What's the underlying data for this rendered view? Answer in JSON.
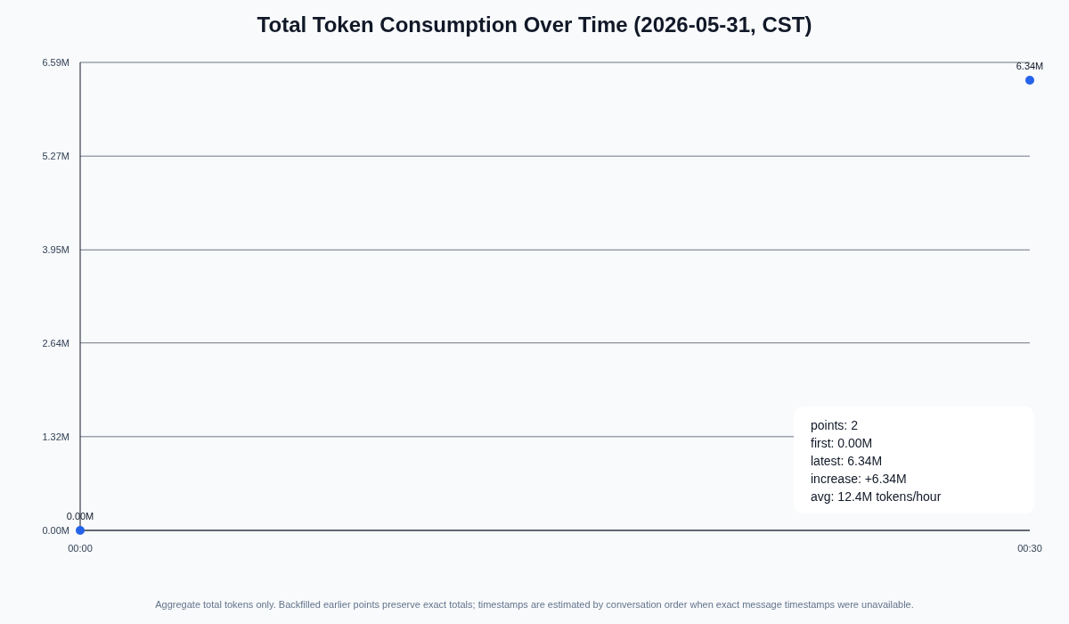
{
  "chart_data": {
    "type": "scatter",
    "title": "Total Token Consumption Over Time (2026-05-31, CST)",
    "x": [
      0,
      0.5
    ],
    "series": [
      {
        "color": "#2563eb",
        "values": [
          0,
          6.34
        ],
        "value_labels": [
          "0.00M",
          "6.34M"
        ]
      }
    ],
    "xlim": [
      0,
      0.5
    ],
    "xticks": [
      {
        "value": 0,
        "label": "00:00"
      },
      {
        "value": 0.5,
        "label": "00:30"
      }
    ],
    "ylim": [
      0,
      6.59
    ],
    "yticks": [
      {
        "value": 0,
        "label": "0.00M"
      },
      {
        "value": 1.32,
        "label": "1.32M"
      },
      {
        "value": 2.64,
        "label": "2.64M"
      },
      {
        "value": 3.95,
        "label": "3.95M"
      },
      {
        "value": 5.27,
        "label": "5.27M"
      },
      {
        "value": 6.59,
        "label": "6.59M"
      }
    ],
    "grid": "y",
    "marker": "circle",
    "annotations": [
      "points: 2",
      "first: 0.00M",
      "latest: 6.34M",
      "increase: +6.34M",
      "avg: 12.4M tokens/hour",
      "Aggregate total tokens only. Backfilled earlier points preserve exact totals; timestamps are estimated by conversation order when exact message timestamps were unavailable."
    ]
  }
}
